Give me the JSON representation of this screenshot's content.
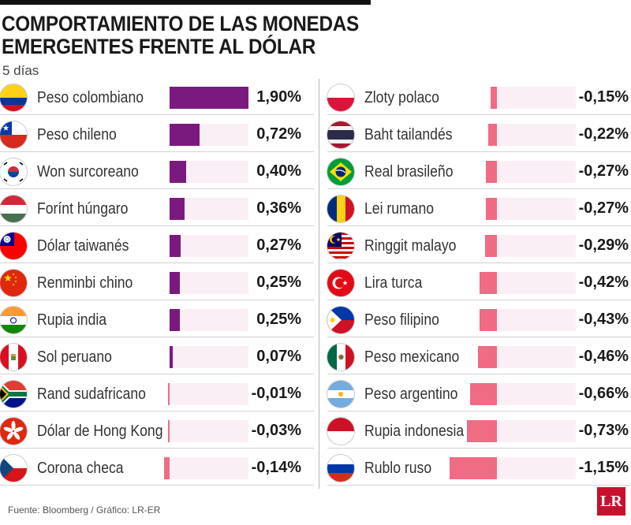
{
  "header": {
    "title_line1": "COMPORTAMIENTO DE LAS MONEDAS",
    "title_line2": "EMERGENTES FRENTE AL DÓLAR",
    "subtitle": "5 días"
  },
  "footer": {
    "source": "Fuente: Bloomberg / Gráfico: LR-ER",
    "logo_text": "LR"
  },
  "colors": {
    "positive": "#7a1a7e",
    "negative": "#f06b84",
    "track": "#fbeff6"
  },
  "chart_data": {
    "type": "bar",
    "title": "COMPORTAMIENTO DE LAS MONEDAS EMERGENTES FRENTE AL DÓLAR",
    "subtitle": "5 días",
    "unit": "%",
    "columns": [
      {
        "items": [
          {
            "name": "Peso colombiano",
            "value": 1.9,
            "label": "1,90%",
            "flag": "colombia-flag-icon"
          },
          {
            "name": "Peso chileno",
            "value": 0.72,
            "label": "0,72%",
            "flag": "chile-flag-icon"
          },
          {
            "name": "Won surcoreano",
            "value": 0.4,
            "label": "0,40%",
            "flag": "south-korea-flag-icon"
          },
          {
            "name": "Forínt húngaro",
            "value": 0.36,
            "label": "0,36%",
            "flag": "hungary-flag-icon"
          },
          {
            "name": "Dólar taiwanés",
            "value": 0.27,
            "label": "0,27%",
            "flag": "taiwan-flag-icon"
          },
          {
            "name": "Renminbi chino",
            "value": 0.25,
            "label": "0,25%",
            "flag": "china-flag-icon"
          },
          {
            "name": "Rupia india",
            "value": 0.25,
            "label": "0,25%",
            "flag": "india-flag-icon"
          },
          {
            "name": "Sol peruano",
            "value": 0.07,
            "label": "0,07%",
            "flag": "peru-flag-icon"
          },
          {
            "name": "Rand sudafricano",
            "value": -0.01,
            "label": "-0,01%",
            "flag": "south-africa-flag-icon"
          },
          {
            "name": "Dólar de Hong Kong",
            "value": -0.03,
            "label": "-0,03%",
            "flag": "hong-kong-flag-icon"
          },
          {
            "name": "Corona checa",
            "value": -0.14,
            "label": "-0,14%",
            "flag": "czech-flag-icon"
          }
        ]
      },
      {
        "items": [
          {
            "name": "Zloty polaco",
            "value": -0.15,
            "label": "-0,15%",
            "flag": "poland-flag-icon"
          },
          {
            "name": "Baht tailandés",
            "value": -0.22,
            "label": "-0,22%",
            "flag": "thailand-flag-icon"
          },
          {
            "name": "Real brasileño",
            "value": -0.27,
            "label": "-0,27%",
            "flag": "brazil-flag-icon"
          },
          {
            "name": "Lei rumano",
            "value": -0.27,
            "label": "-0,27%",
            "flag": "romania-flag-icon"
          },
          {
            "name": "Ringgit malayo",
            "value": -0.29,
            "label": "-0,29%",
            "flag": "malaysia-flag-icon"
          },
          {
            "name": "Lira turca",
            "value": -0.42,
            "label": "-0,42%",
            "flag": "turkey-flag-icon"
          },
          {
            "name": "Peso filipino",
            "value": -0.43,
            "label": "-0,43%",
            "flag": "philippines-flag-icon"
          },
          {
            "name": "Peso mexicano",
            "value": -0.46,
            "label": "-0,46%",
            "flag": "mexico-flag-icon"
          },
          {
            "name": "Peso argentino",
            "value": -0.66,
            "label": "-0,66%",
            "flag": "argentina-flag-icon"
          },
          {
            "name": "Rupia indonesia",
            "value": -0.73,
            "label": "-0,73%",
            "flag": "indonesia-flag-icon"
          },
          {
            "name": "Rublo ruso",
            "value": -1.15,
            "label": "-1,15%",
            "flag": "russia-flag-icon"
          }
        ]
      }
    ]
  }
}
